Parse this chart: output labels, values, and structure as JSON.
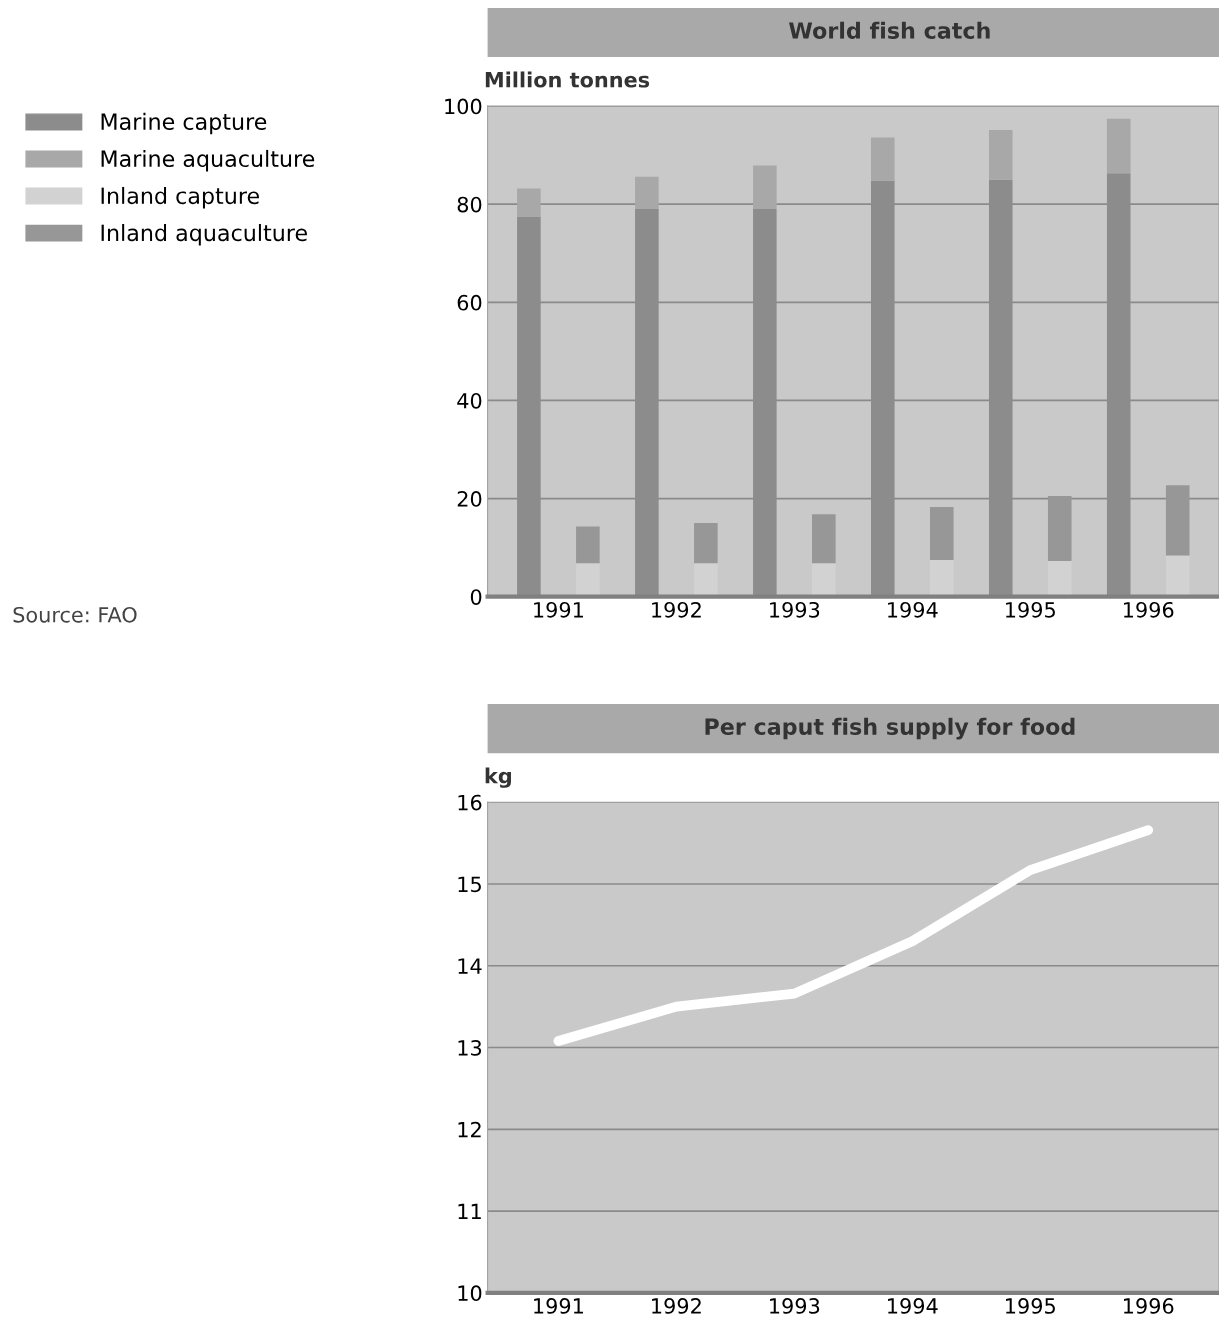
{
  "chart_data": [
    {
      "type": "bar",
      "title": "World fish catch",
      "ylabel": "Million tonnes",
      "categories": [
        "1991",
        "1992",
        "1993",
        "1994",
        "1995",
        "1996"
      ],
      "series": [
        {
          "name": "Marine capture",
          "color": "#8c8c8c",
          "base": [
            0,
            0,
            0,
            0,
            0,
            0
          ],
          "values": [
            77.5,
            79,
            79,
            84.8,
            85,
            86.3
          ]
        },
        {
          "name": "Marine aquaculture",
          "color": "#a8a8a8",
          "base": [
            77.5,
            79,
            79,
            84.8,
            85,
            86.3
          ],
          "values": [
            5.7,
            6.6,
            8.9,
            8.8,
            10.1,
            11.1
          ]
        },
        {
          "name": "Inland capture",
          "color": "#d2d2d2",
          "base": [
            0,
            0,
            0,
            0,
            0,
            0
          ],
          "values": [
            6.8,
            6.8,
            6.8,
            7.5,
            7.3,
            8.4
          ]
        },
        {
          "name": "Inland aquaculture",
          "color": "#979797",
          "base": [
            6.8,
            6.8,
            6.8,
            7.5,
            7.3,
            8.4
          ],
          "values": [
            7.5,
            8.2,
            10,
            10.8,
            13.2,
            14.3
          ]
        }
      ],
      "ylim": [
        0,
        100
      ],
      "yticks": [
        0,
        20,
        40,
        60,
        80,
        100
      ],
      "grid": "y",
      "legend": "left",
      "annotations": [
        "Source: FAO"
      ]
    },
    {
      "type": "line",
      "title": "Per caput fish supply for food",
      "ylabel": "kg",
      "categories": [
        "1991",
        "1992",
        "1993",
        "1994",
        "1995",
        "1996"
      ],
      "series": [
        {
          "color": "#ffffff",
          "values": [
            13.08,
            13.5,
            13.66,
            14.3,
            15.17,
            15.66
          ]
        }
      ],
      "ylim": [
        10,
        16
      ],
      "yticks": [
        10,
        11,
        12,
        13,
        14,
        15,
        16
      ],
      "grid": "y",
      "marker": "none",
      "line_style": "solid"
    }
  ]
}
